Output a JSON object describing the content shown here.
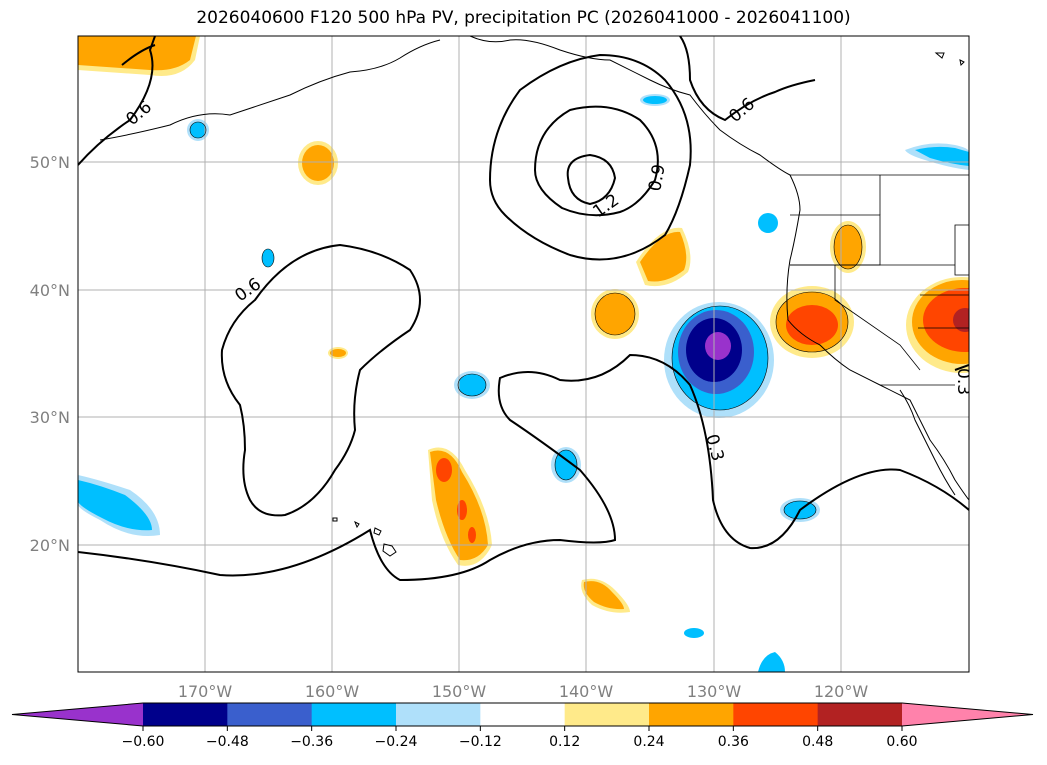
{
  "title": "2026040600 F120 500 hPa PV, precipitation PC (2026041000 - 2026041100)",
  "map": {
    "lon_ticks": [
      "170°W",
      "160°W",
      "150°W",
      "140°W",
      "130°W",
      "120°W"
    ],
    "lat_ticks": [
      "50°N",
      "40°N",
      "30°N",
      "20°N"
    ],
    "contour_labels": [
      "0.6",
      "0.6",
      "1.2",
      "0.9",
      "0.6",
      "0.3",
      "0.3"
    ]
  },
  "colorbar": {
    "ticks": [
      "−0.60",
      "−0.48",
      "−0.36",
      "−0.24",
      "−0.12",
      "0.12",
      "0.24",
      "0.36",
      "0.48",
      "0.60"
    ],
    "colors": [
      "#9932cc",
      "#00008b",
      "#3a5fcd",
      "#00bfff",
      "#afe0fa",
      "#ffffff",
      "#ffea8a",
      "#ffa500",
      "#ff4500",
      "#b22222",
      "#ff82ab"
    ]
  }
}
